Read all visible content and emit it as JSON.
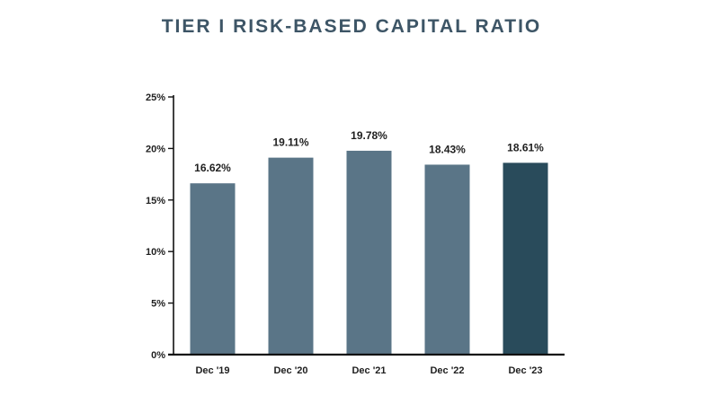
{
  "chart_data": {
    "type": "bar",
    "title": "TIER I RISK-BASED CAPITAL RATIO",
    "categories": [
      "Dec '19",
      "Dec '20",
      "Dec '21",
      "Dec '22",
      "Dec '23"
    ],
    "values": [
      16.62,
      19.11,
      19.78,
      18.43,
      18.61
    ],
    "data_labels": [
      "16.62%",
      "19.11%",
      "19.78%",
      "18.43%",
      "18.61%"
    ],
    "ylim": [
      0,
      25
    ],
    "yticks": [
      0,
      5,
      10,
      15,
      20,
      25
    ],
    "ytick_labels": [
      "0%",
      "5%",
      "10%",
      "15%",
      "20%",
      "25%"
    ],
    "xlabel": "",
    "ylabel": "",
    "grid": false,
    "colors": {
      "bar": "#5a7587",
      "bar_highlight": "#294b5b",
      "axis": "#111111",
      "title": "#3d5566"
    },
    "highlight_index": 4
  }
}
